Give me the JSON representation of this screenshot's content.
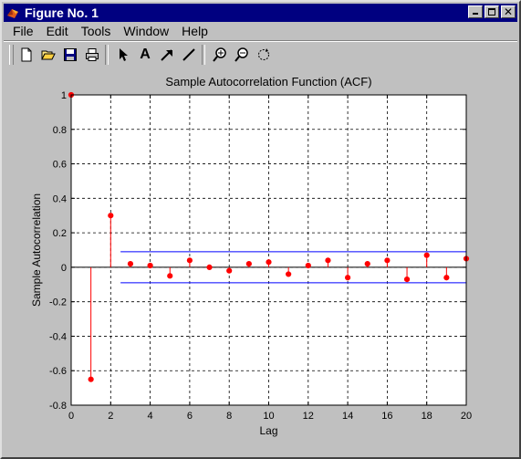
{
  "window": {
    "title": "Figure No. 1"
  },
  "menu": [
    "File",
    "Edit",
    "Tools",
    "Window",
    "Help"
  ],
  "toolbar": {
    "tools": [
      {
        "name": "new-figure-icon"
      },
      {
        "name": "open-file-icon"
      },
      {
        "name": "save-icon"
      },
      {
        "name": "print-icon"
      },
      {
        "name": "select-arrow-icon"
      },
      {
        "name": "insert-text-icon"
      },
      {
        "name": "insert-arrow-icon"
      },
      {
        "name": "insert-line-icon"
      },
      {
        "name": "zoom-in-icon"
      },
      {
        "name": "zoom-out-icon"
      },
      {
        "name": "rotate-3d-icon"
      }
    ],
    "text_tool_glyph": "A"
  },
  "chart_data": {
    "type": "stem",
    "title": "Sample Autocorrelation Function (ACF)",
    "xlabel": "Lag",
    "ylabel": "Sample Autocorrelation",
    "xlim": [
      0,
      20
    ],
    "ylim": [
      -0.8,
      1
    ],
    "xticks": [
      "0",
      "2",
      "4",
      "6",
      "8",
      "10",
      "12",
      "14",
      "16",
      "18",
      "20"
    ],
    "yticks": [
      "-0.8",
      "-0.6",
      "-0.4",
      "-0.2",
      "0",
      "0.2",
      "0.4",
      "0.6",
      "0.8",
      "1"
    ],
    "grid": true,
    "series": [
      {
        "x": [
          0,
          1,
          2,
          3,
          4,
          5,
          6,
          7,
          8,
          9,
          10,
          11,
          12,
          13,
          14,
          15,
          16,
          17,
          18,
          19,
          20
        ],
        "values": [
          1.0,
          -0.65,
          0.3,
          0.02,
          0.01,
          -0.05,
          0.04,
          0.0,
          -0.02,
          0.02,
          0.03,
          -0.04,
          0.01,
          0.04,
          -0.06,
          0.02,
          0.04,
          -0.07,
          0.07,
          -0.06,
          0.05
        ],
        "color": "#ff0000"
      }
    ],
    "confidence_bounds": {
      "upper": 0.09,
      "lower": -0.09,
      "x_start": 2.5,
      "x_end": 20,
      "color": "#0000ff"
    },
    "colors": {
      "stem": "#ff0000",
      "bounds": "#0000ff",
      "zero_line": "#000000"
    }
  }
}
